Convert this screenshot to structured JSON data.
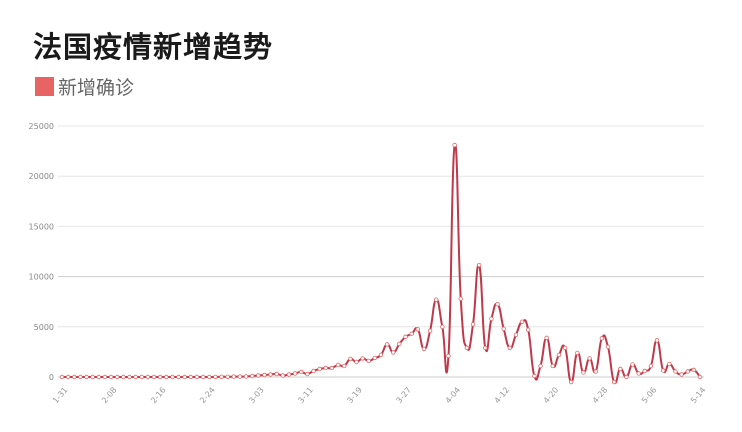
{
  "chart_data": {
    "type": "line",
    "title": "法国疫情新增趋势",
    "xlabel": "",
    "ylabel": "",
    "ylim": [
      0,
      25000
    ],
    "yticks": [
      0,
      5000,
      10000,
      15000,
      20000,
      25000
    ],
    "grid": true,
    "smooth": true,
    "legend_position": "top-left",
    "x": [
      "1-31",
      "2-01",
      "2-02",
      "2-03",
      "2-04",
      "2-05",
      "2-06",
      "2-07",
      "2-08",
      "2-09",
      "2-10",
      "2-11",
      "2-12",
      "2-13",
      "2-14",
      "2-15",
      "2-16",
      "2-17",
      "2-18",
      "2-19",
      "2-20",
      "2-21",
      "2-22",
      "2-23",
      "2-24",
      "2-25",
      "2-26",
      "2-27",
      "2-28",
      "2-29",
      "3-01",
      "3-02",
      "3-03",
      "3-04",
      "3-05",
      "3-06",
      "3-07",
      "3-08",
      "3-09",
      "3-10",
      "3-11",
      "3-12",
      "3-13",
      "3-14",
      "3-15",
      "3-16",
      "3-17",
      "3-18",
      "3-19",
      "3-20",
      "3-21",
      "3-22",
      "3-23",
      "3-24",
      "3-25",
      "3-26",
      "3-27",
      "3-28",
      "3-29",
      "3-30",
      "3-31",
      "4-01",
      "4-02",
      "4-03",
      "4-04",
      "4-05",
      "4-06",
      "4-07",
      "4-08",
      "4-09",
      "4-10",
      "4-11",
      "4-12",
      "4-13",
      "4-14",
      "4-15",
      "4-16",
      "4-17",
      "4-18",
      "4-19",
      "4-20",
      "4-21",
      "4-22",
      "4-23",
      "4-24",
      "4-25",
      "4-26",
      "4-27",
      "4-28",
      "4-29",
      "4-30",
      "5-01",
      "5-02",
      "5-03",
      "5-04",
      "5-05",
      "5-06",
      "5-07",
      "5-08",
      "5-09",
      "5-10",
      "5-11",
      "5-12",
      "5-13",
      "5-14"
    ],
    "xtick_labels": [
      "1-31",
      "2-08",
      "2-16",
      "2-24",
      "3-03",
      "3-11",
      "3-19",
      "3-27",
      "4-04",
      "4-12",
      "4-20",
      "4-28",
      "5-06",
      "5-14"
    ],
    "series": [
      {
        "name": "新增确诊",
        "color": "#e86464",
        "line_color": "#c0394b",
        "values": [
          0,
          0,
          0,
          0,
          0,
          0,
          0,
          0,
          0,
          0,
          0,
          0,
          0,
          0,
          0,
          0,
          0,
          0,
          0,
          0,
          0,
          0,
          0,
          0,
          0,
          10,
          20,
          20,
          40,
          40,
          50,
          100,
          150,
          200,
          250,
          300,
          150,
          250,
          350,
          500,
          300,
          600,
          800,
          900,
          900,
          1200,
          1100,
          1800,
          1500,
          1850,
          1600,
          1900,
          2200,
          3250,
          2450,
          3300,
          4000,
          4300,
          4750,
          2800,
          4600,
          7700,
          5000,
          2100,
          23100,
          7800,
          2900,
          5250,
          11150,
          2900,
          5800,
          7250,
          4800,
          2900,
          4200,
          5500,
          4700,
          100,
          1100,
          3900,
          1100,
          2200,
          2900,
          -500,
          2400,
          450,
          1850,
          550,
          3850,
          3000,
          -500,
          800,
          0,
          1250,
          350,
          600,
          1100,
          3650,
          650,
          1300,
          550,
          250,
          550,
          700,
          0
        ]
      }
    ]
  }
}
